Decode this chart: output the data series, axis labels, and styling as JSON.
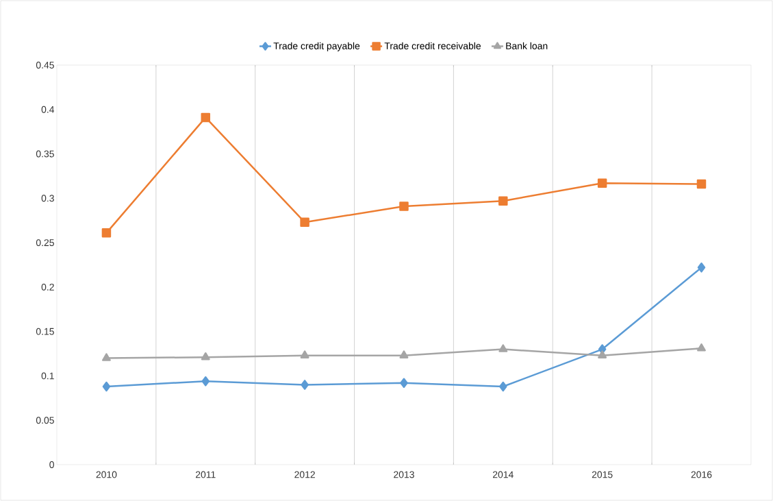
{
  "chart_data": {
    "type": "line",
    "categories": [
      "2010",
      "2011",
      "2012",
      "2013",
      "2014",
      "2015",
      "2016"
    ],
    "series": [
      {
        "name": "Trade credit payable",
        "color": "#5b9bd5",
        "marker": "diamond",
        "values": [
          0.088,
          0.094,
          0.09,
          0.092,
          0.088,
          0.13,
          0.222
        ]
      },
      {
        "name": "Trade credit receivable",
        "color": "#ed7d31",
        "marker": "square",
        "values": [
          0.261,
          0.391,
          0.273,
          0.291,
          0.297,
          0.317,
          0.316
        ]
      },
      {
        "name": "Bank loan",
        "color": "#a5a5a5",
        "marker": "triangle",
        "values": [
          0.12,
          0.121,
          0.123,
          0.123,
          0.13,
          0.123,
          0.131
        ]
      }
    ],
    "ylim": [
      0,
      0.45
    ],
    "yticks": [
      0,
      0.05,
      0.1,
      0.15,
      0.2,
      0.25,
      0.3,
      0.35,
      0.4,
      0.45
    ],
    "grid": "x",
    "legend": "top",
    "line_style": "solid"
  }
}
